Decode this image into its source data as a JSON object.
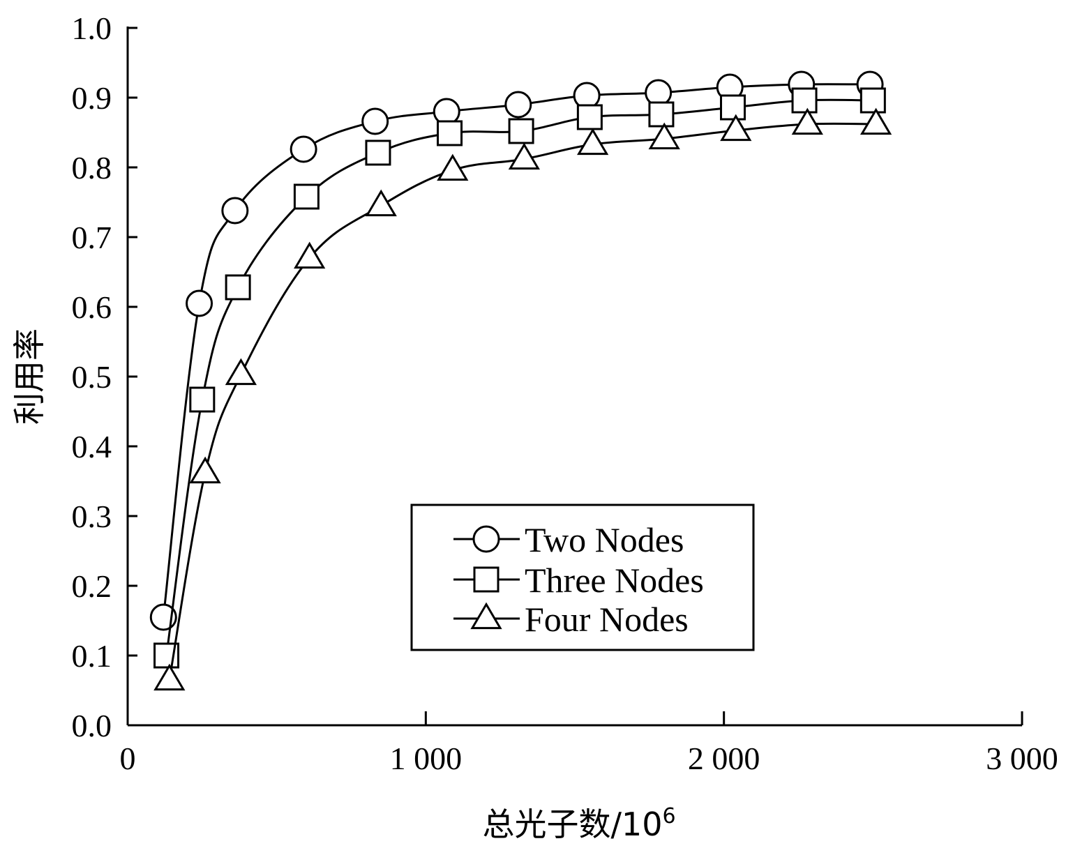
{
  "chart_data": {
    "type": "line",
    "xlabel": "总光子数/10",
    "xlabel_superscript": "6",
    "ylabel": "利用率",
    "xlim": [
      0,
      3000
    ],
    "ylim": [
      0.0,
      1.0
    ],
    "x_ticks": [
      0,
      1000,
      2000,
      3000
    ],
    "x_tick_labels": [
      "0",
      "1 000",
      "2 000",
      "3 000"
    ],
    "y_ticks": [
      0.0,
      0.1,
      0.2,
      0.3,
      0.4,
      0.5,
      0.6,
      0.7,
      0.8,
      0.9,
      1.0
    ],
    "y_tick_labels": [
      "0.0",
      "0.1",
      "0.2",
      "0.3",
      "0.4",
      "0.5",
      "0.6",
      "0.7",
      "0.8",
      "0.9",
      "1.0"
    ],
    "grid": false,
    "legend_position": "lower-center",
    "series": [
      {
        "name": "Two Nodes",
        "marker": "circle",
        "x": [
          120,
          240,
          360,
          590,
          830,
          1070,
          1310,
          1540,
          1780,
          2020,
          2260,
          2490
        ],
        "y": [
          0.155,
          0.605,
          0.738,
          0.826,
          0.866,
          0.88,
          0.89,
          0.903,
          0.907,
          0.915,
          0.919,
          0.919
        ]
      },
      {
        "name": "Three Nodes",
        "marker": "square",
        "x": [
          130,
          250,
          370,
          600,
          840,
          1080,
          1320,
          1550,
          1790,
          2030,
          2270,
          2500
        ],
        "y": [
          0.1,
          0.467,
          0.628,
          0.758,
          0.821,
          0.849,
          0.852,
          0.872,
          0.876,
          0.886,
          0.896,
          0.896
        ]
      },
      {
        "name": "Four Nodes",
        "marker": "triangle",
        "x": [
          140,
          260,
          380,
          610,
          850,
          1090,
          1330,
          1560,
          1800,
          2040,
          2280,
          2510
        ],
        "y": [
          0.065,
          0.362,
          0.503,
          0.67,
          0.745,
          0.796,
          0.812,
          0.833,
          0.841,
          0.853,
          0.862,
          0.862
        ]
      }
    ]
  }
}
